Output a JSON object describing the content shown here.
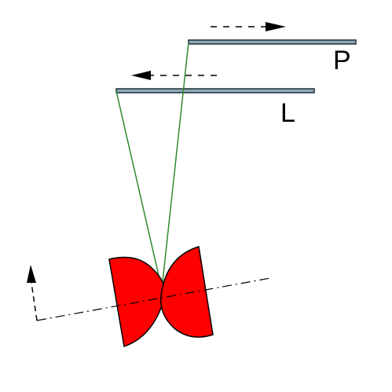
{
  "diagram": {
    "labels": {
      "plate_top": "P",
      "plate_bottom": "L"
    },
    "colors": {
      "plate_fill": "#8fa9b8",
      "plate_stroke": "#1f2d36",
      "ray": "#2e8b2e",
      "lens_fill": "#ff0000",
      "lens_stroke": "#000000",
      "arrow": "#000000",
      "axis": "#000000"
    },
    "icons": {
      "plate_top_motion": "arrow-right-dashed-icon",
      "plate_bottom_motion": "arrow-left-dashed-icon",
      "axis_rotation": "arrow-up-dashed-icon"
    }
  }
}
